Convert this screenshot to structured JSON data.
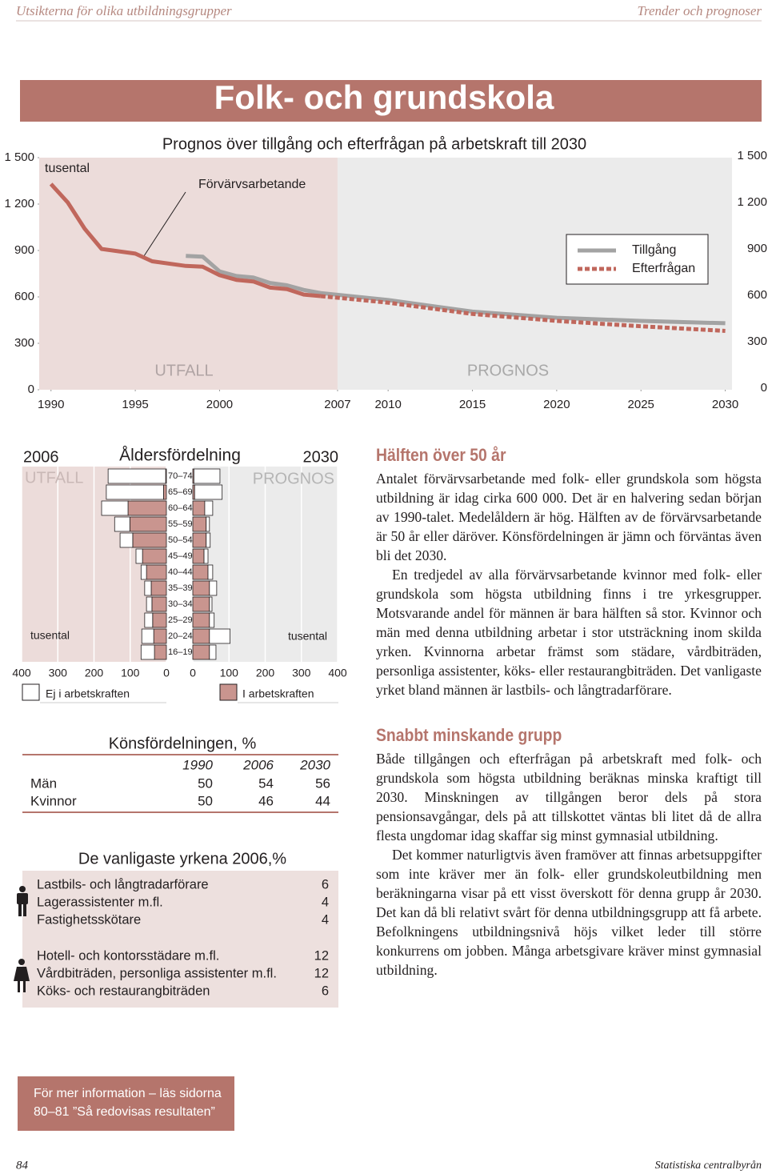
{
  "header": {
    "left": "Utsikterna för olika utbildningsgrupper",
    "right": "Trender och prognoser"
  },
  "title": "Folk- och grundskola",
  "chart_data": [
    {
      "type": "line",
      "title": "Prognos över tillgång och efterfrågan på arbetskraft till 2030",
      "y_label": "tusental",
      "annotations": [
        "Förvärvsarbetande",
        "UTFALL",
        "PROGNOS"
      ],
      "x": [
        1990,
        1991,
        1992,
        1993,
        1995,
        1996,
        1998,
        1999,
        2000,
        2001,
        2002,
        2003,
        2004,
        2005,
        2006,
        2010,
        2015,
        2020,
        2025,
        2030
      ],
      "series": [
        {
          "name": "Tillgång",
          "color": "#a3a3a3",
          "values": [
            null,
            null,
            null,
            null,
            null,
            null,
            865,
            860,
            765,
            735,
            725,
            690,
            675,
            645,
            625,
            580,
            505,
            465,
            445,
            430
          ]
        },
        {
          "name": "Efterfrågan",
          "color": "#c0675c",
          "forecast_dash": true,
          "values": [
            1330,
            1210,
            1040,
            910,
            880,
            830,
            800,
            795,
            740,
            710,
            700,
            660,
            650,
            615,
            605,
            563,
            490,
            445,
            410,
            380
          ]
        }
      ],
      "xlim": [
        1989.3,
        2030.4
      ],
      "xticks": [
        1990,
        1995,
        2000,
        2007,
        2010,
        2015,
        2020,
        2025,
        2030
      ],
      "ylim": [
        0,
        1500
      ],
      "yticks": [
        0,
        300,
        600,
        900,
        {
          "value": 1200,
          "label": "1 200"
        },
        {
          "value": 1500,
          "label": "1 500"
        }
      ]
    },
    {
      "type": "pyramid",
      "title": "Åldersfördelning",
      "left_title": "2006",
      "right_title": "2030",
      "left_note": "UTFALL",
      "right_note": "PROGNOS",
      "unit_label": "tusental",
      "categories": [
        "70–74",
        "65–69",
        "60–64",
        "55–59",
        "50–54",
        "45–49",
        "40–44",
        "35–39",
        "30–34",
        "25–29",
        "20–24",
        "16–19"
      ],
      "series": [
        {
          "name": "Ej i arbetskraften",
          "color": "#ffffff",
          "left": [
            159,
            158,
            73,
            42,
            35,
            18,
            15,
            18,
            15,
            22,
            33,
            37
          ],
          "right": [
            72,
            76,
            22,
            9,
            11,
            11,
            13,
            20,
            7,
            13,
            57,
            18
          ]
        },
        {
          "name": "I arbetskraften",
          "color": "#c9958f",
          "left": [
            2,
            8,
            106,
            101,
            93,
            66,
            55,
            42,
            40,
            38,
            35,
            33
          ],
          "right": [
            3,
            5,
            33,
            37,
            37,
            31,
            42,
            46,
            46,
            46,
            46,
            46
          ]
        }
      ],
      "xlim": [
        0,
        400
      ],
      "xticks": [
        0,
        100,
        200,
        300,
        400
      ]
    }
  ],
  "gender_table": {
    "title": "Könsfördelningen, %",
    "columns": [
      "1990",
      "2006",
      "2030"
    ],
    "rows": [
      {
        "label": "Män",
        "values": [
          "50",
          "54",
          "56"
        ]
      },
      {
        "label": "Kvinnor",
        "values": [
          "50",
          "46",
          "44"
        ]
      }
    ]
  },
  "occupations": {
    "title": "De vanligaste yrkena 2006,%",
    "groups": [
      {
        "rows": [
          {
            "label": "Lastbils- och långtradarförare",
            "value": "6"
          },
          {
            "label": "Lagerassistenter m.fl.",
            "value": "4"
          },
          {
            "label": "Fastighetsskötare",
            "value": "4"
          }
        ]
      },
      {
        "rows": [
          {
            "label": "Hotell- och kontorsstädare m.fl.",
            "value": "12"
          },
          {
            "label": "Vårdbiträden, personliga assistenter m.fl.",
            "value": "12"
          },
          {
            "label": "Köks- och restaurangbiträden",
            "value": "6"
          }
        ]
      }
    ]
  },
  "sections": [
    {
      "heading": "Hälften över 50 år",
      "paragraphs": [
        "Antalet förvärvsarbetande med folk- eller grundskola som högsta utbildning är idag cirka 600 000. Det är en halvering sedan början av 1990-talet. Medelåldern är hög. Hälften av de förvärvsarbetande är 50 år eller däröver. Könsfördelningen är jämn och förväntas även bli det 2030.",
        "En tredjedel av alla förvärvsarbetande kvinnor med folk- eller grundskola som högsta utbildning finns i tre yrkesgrupper. Motsvarande andel för männen är bara hälften så stor. Kvinnor och män med denna utbildning arbetar i stor utsträckning inom skilda yrken. Kvinnorna arbetar främst som städare, vårdbiträden, personliga assistenter, köks- eller restaurangbiträden. Det vanligaste yrket bland männen är lastbils- och långtradarförare."
      ]
    },
    {
      "heading": "Snabbt minskande grupp",
      "paragraphs": [
        "Både tillgången och efterfrågan på arbetskraft med folk- och grundskola som högsta utbildning beräknas minska kraftigt till 2030. Minskningen av tillgången beror dels på stora pensionsavgångar, dels på att tillskottet väntas bli litet då de allra flesta ungdomar idag skaffar sig minst gymnasial utbildning.",
        "Det kommer naturligtvis även framöver att finnas arbetsuppgifter som inte kräver mer än folk- eller grundskoleutbildning men beräkningarna visar på ett visst överskott för denna grupp år 2030. Det kan då bli relativt svårt för denna utbildningsgrupp att få arbete. Befolkningens utbildningsnivå höjs vilket leder till större konkurrens om jobben. Många arbetsgivare kräver minst gymnasial utbildning."
      ]
    }
  ],
  "info_box": {
    "lines": [
      "För mer information – läs sidorna",
      "80–81 ”Så redovisas resultaten”"
    ]
  },
  "footer": {
    "page": "84",
    "publisher": "Statistiska centralbyrån"
  }
}
